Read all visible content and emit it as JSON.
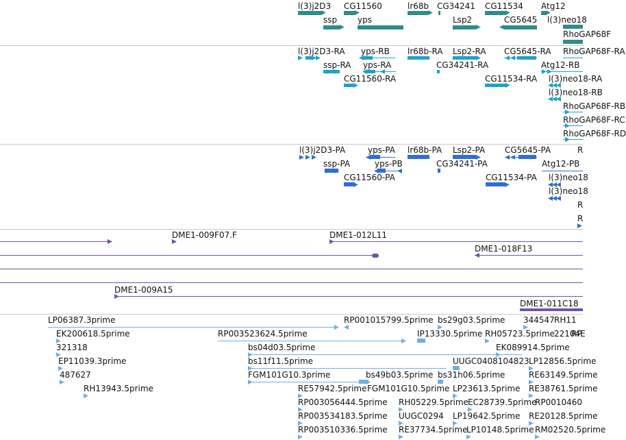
{
  "colors": {
    "gene": "#2e8c8c",
    "transcript": "#1aa3c9",
    "protein": "#2f6fd1",
    "clone": "#7052a8",
    "est": "#6fb0de",
    "divider": "#c8c8c8"
  },
  "tracks": {
    "genes": {
      "labels": [
        "l(3)j2D3",
        "CG11560",
        "lr68b",
        "CG34241",
        "CG11534",
        "Atg12",
        "ssp",
        "yps",
        "Lsp2",
        "CG5645",
        "l(3)neo18",
        "RhoGAP68F"
      ]
    },
    "transcripts": {
      "labels": [
        "l(3)j2D3-RA",
        "yps-RB",
        "lr68b-RA",
        "Lsp2-RA",
        "CG5645-RA",
        "RhoGAP68F-RA",
        "ssp-RA",
        "yps-RA",
        "CG34241-RA",
        "Atg12-RB",
        "CG11560-RA",
        "CG11534-RA",
        "l(3)neo18-RA",
        "l(3)neo18-RB",
        "RhoGAP68F-RB",
        "RhoGAP68F-RC",
        "RhoGAP68F-RD"
      ]
    },
    "proteins": {
      "labels": [
        "l(3)j2D3-PA",
        "yps-PA",
        "lr68b-PA",
        "Lsp2-PA",
        "CG5645-PA",
        "R",
        "ssp-PA",
        "yps-PB",
        "CG34241-PA",
        "Atg12-PB",
        "CG11560-PA",
        "CG11534-PA",
        "l(3)neo18",
        "l(3)neo18",
        "R",
        "R"
      ]
    },
    "clones": {
      "labels": [
        "DME1-009F07.F",
        "DME1-012L11",
        "DME1-018F13",
        "DME1-009A15",
        "DME1-011C18"
      ]
    },
    "ests": {
      "labels": [
        "LP06387.3prime",
        "RP001015799.5prime",
        "bs29g03.5prime",
        "344547",
        "RH11",
        "EK200618.5prime",
        "RP003523624.5prime",
        "IP13330.5prime",
        "RH05723.5prime",
        "22104E",
        "RP",
        "321318",
        "bs04d03.5prime",
        "EK089914.5prime",
        "EP11039.3prime",
        "bs11f11.5prime",
        "UUGC0408104823",
        "LP12856.5prime",
        "487627",
        "FGM101G10.3prime",
        "bs49b03.5prime",
        "bs31h06.5prime",
        "RE63149.5prime",
        "RH13943.5prime",
        "RE57942.5prime",
        "FGM101G10.5prime",
        "LP23613.5prime",
        "RE38761.5prime",
        "RP003056444.5prime",
        "RH05229.5prime",
        "EC28739.5prime",
        "RP0010460",
        "RP003534183.5prime",
        "UUGC0294",
        "LP19642.5prime",
        "RE20128.5prime",
        "RP003510336.5prime",
        "RE37734.5prime",
        "LP10148.5prime",
        "RM02520.5prime"
      ]
    }
  }
}
